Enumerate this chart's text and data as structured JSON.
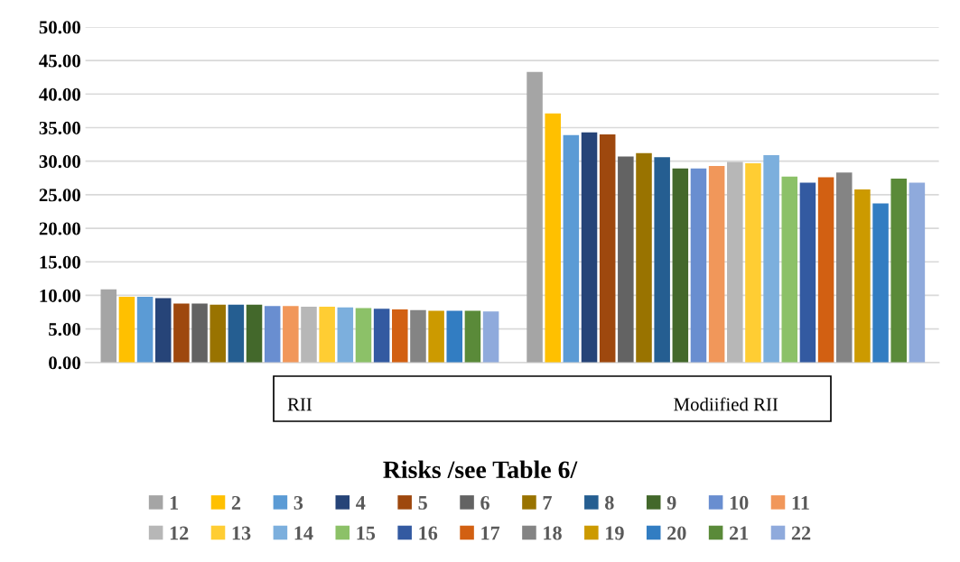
{
  "chart_data": {
    "type": "bar",
    "categories": [
      "RII",
      "Modiified RII"
    ],
    "legend_title": "Risks /see Table 6/",
    "ylim": [
      0,
      50
    ],
    "yticks": [
      {
        "value": 0,
        "label": "0.00"
      },
      {
        "value": 5,
        "label": "5.00"
      },
      {
        "value": 10,
        "label": "10.00"
      },
      {
        "value": 15,
        "label": "15.00"
      },
      {
        "value": 20,
        "label": "20.00"
      },
      {
        "value": 25,
        "label": "25.00"
      },
      {
        "value": 30,
        "label": "30.00"
      },
      {
        "value": 35,
        "label": "35.00"
      },
      {
        "value": 40,
        "label": "40.00"
      },
      {
        "value": 45,
        "label": "45.00"
      },
      {
        "value": 50,
        "label": "50.00"
      }
    ],
    "grid": "y",
    "legend": "bottom",
    "series": [
      {
        "name": "1",
        "color": "#a5a5a5",
        "values": [
          10.9,
          43.3
        ]
      },
      {
        "name": "2",
        "color": "#ffc000",
        "values": [
          9.8,
          37.1
        ]
      },
      {
        "name": "3",
        "color": "#5b9bd5",
        "values": [
          9.8,
          33.9
        ]
      },
      {
        "name": "4",
        "color": "#264478",
        "values": [
          9.6,
          34.3
        ]
      },
      {
        "name": "5",
        "color": "#9e480e",
        "values": [
          8.8,
          34.0
        ]
      },
      {
        "name": "6",
        "color": "#636363",
        "values": [
          8.8,
          30.7
        ]
      },
      {
        "name": "7",
        "color": "#997300",
        "values": [
          8.6,
          31.2
        ]
      },
      {
        "name": "8",
        "color": "#255e91",
        "values": [
          8.6,
          30.6
        ]
      },
      {
        "name": "9",
        "color": "#43682b",
        "values": [
          8.6,
          28.9
        ]
      },
      {
        "name": "10",
        "color": "#698ed0",
        "values": [
          8.4,
          28.9
        ]
      },
      {
        "name": "11",
        "color": "#f1975a",
        "values": [
          8.4,
          29.3
        ]
      },
      {
        "name": "12",
        "color": "#b7b7b7",
        "values": [
          8.3,
          29.9
        ]
      },
      {
        "name": "13",
        "color": "#ffcd33",
        "values": [
          8.3,
          29.7
        ]
      },
      {
        "name": "14",
        "color": "#7cafdd",
        "values": [
          8.2,
          30.9
        ]
      },
      {
        "name": "15",
        "color": "#8cc168",
        "values": [
          8.1,
          27.7
        ]
      },
      {
        "name": "16",
        "color": "#335aa1",
        "values": [
          8.0,
          26.8
        ]
      },
      {
        "name": "17",
        "color": "#d26012",
        "values": [
          7.9,
          27.6
        ]
      },
      {
        "name": "18",
        "color": "#848484",
        "values": [
          7.8,
          28.3
        ]
      },
      {
        "name": "19",
        "color": "#cc9a00",
        "values": [
          7.7,
          25.8
        ]
      },
      {
        "name": "20",
        "color": "#327dc2",
        "values": [
          7.7,
          23.7
        ]
      },
      {
        "name": "21",
        "color": "#5a8a39",
        "values": [
          7.7,
          27.4
        ]
      },
      {
        "name": "22",
        "color": "#8faadc",
        "values": [
          7.6,
          26.8
        ]
      }
    ]
  }
}
